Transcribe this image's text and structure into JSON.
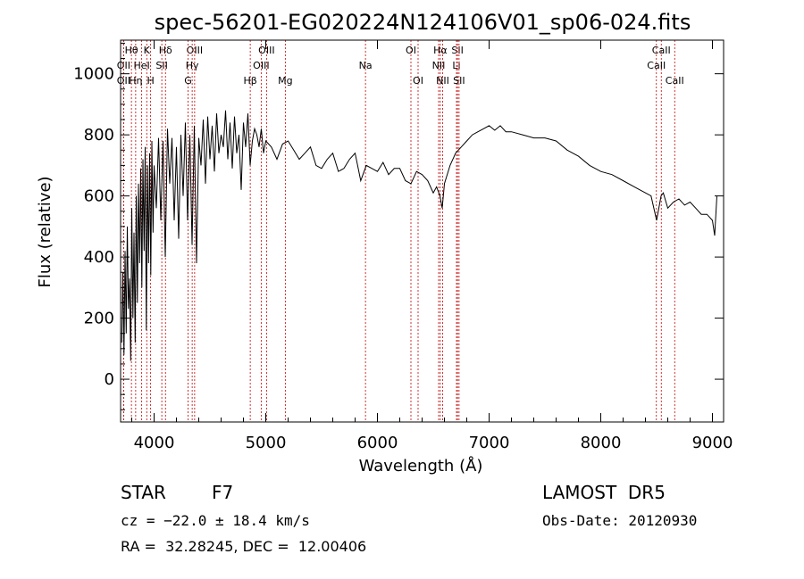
{
  "chart_data": {
    "type": "line",
    "title": "spec-56201-EG020224N124106V01_sp06-024.fits",
    "xlabel": "Wavelength (Å)",
    "ylabel": "Flux (relative)",
    "xlim": [
      3700,
      9100
    ],
    "ylim": [
      -140,
      1110
    ],
    "xticks": [
      4000,
      5000,
      6000,
      7000,
      8000,
      9000
    ],
    "yticks": [
      0,
      200,
      400,
      600,
      800,
      1000
    ],
    "grid": false,
    "series": [
      {
        "values_description_free": true,
        "x": [
          3710,
          3720,
          3730,
          3740,
          3750,
          3760,
          3770,
          3780,
          3790,
          3800,
          3810,
          3820,
          3830,
          3840,
          3850,
          3860,
          3870,
          3880,
          3890,
          3900,
          3910,
          3920,
          3930,
          3940,
          3950,
          3960,
          3970,
          3980,
          3990,
          4000,
          4020,
          4040,
          4060,
          4080,
          4100,
          4120,
          4140,
          4160,
          4180,
          4200,
          4220,
          4240,
          4260,
          4280,
          4300,
          4320,
          4340,
          4360,
          4380,
          4400,
          4420,
          4440,
          4460,
          4480,
          4500,
          4520,
          4540,
          4560,
          4580,
          4600,
          4620,
          4640,
          4660,
          4680,
          4700,
          4720,
          4740,
          4760,
          4780,
          4800,
          4820,
          4840,
          4860,
          4880,
          4900,
          4920,
          4940,
          4960,
          4980,
          5000,
          5050,
          5100,
          5150,
          5200,
          5250,
          5300,
          5350,
          5400,
          5450,
          5500,
          5550,
          5600,
          5650,
          5700,
          5750,
          5800,
          5850,
          5900,
          5950,
          6000,
          6050,
          6100,
          6150,
          6200,
          6250,
          6300,
          6350,
          6400,
          6450,
          6500,
          6530,
          6560,
          6580,
          6600,
          6650,
          6700,
          6750,
          6800,
          6850,
          6900,
          6950,
          7000,
          7050,
          7100,
          7150,
          7200,
          7300,
          7400,
          7500,
          7600,
          7700,
          7800,
          7900,
          8000,
          8100,
          8200,
          8300,
          8400,
          8450,
          8500,
          8540,
          8560,
          8600,
          8650,
          8700,
          8750,
          8800,
          8850,
          8900,
          8950,
          9000,
          9020,
          9040
        ],
        "y": [
          120,
          350,
          80,
          420,
          150,
          500,
          230,
          330,
          60,
          560,
          200,
          480,
          120,
          600,
          250,
          640,
          380,
          690,
          300,
          720,
          420,
          760,
          160,
          700,
          380,
          740,
          340,
          780,
          480,
          700,
          560,
          790,
          520,
          780,
          400,
          820,
          640,
          790,
          520,
          760,
          460,
          800,
          600,
          840,
          520,
          800,
          440,
          830,
          380,
          790,
          700,
          850,
          640,
          860,
          720,
          830,
          680,
          870,
          740,
          800,
          760,
          880,
          720,
          840,
          690,
          860,
          740,
          800,
          620,
          840,
          760,
          870,
          700,
          780,
          820,
          800,
          760,
          820,
          740,
          780,
          760,
          720,
          770,
          780,
          750,
          720,
          740,
          760,
          700,
          690,
          720,
          740,
          680,
          690,
          720,
          740,
          650,
          700,
          690,
          680,
          710,
          670,
          690,
          690,
          650,
          640,
          680,
          670,
          650,
          610,
          630,
          600,
          560,
          640,
          700,
          740,
          760,
          780,
          800,
          810,
          820,
          830,
          815,
          830,
          810,
          810,
          800,
          790,
          790,
          780,
          750,
          730,
          700,
          680,
          670,
          650,
          630,
          610,
          600,
          520,
          600,
          610,
          560,
          580,
          590,
          570,
          580,
          560,
          540,
          540,
          520,
          470,
          600
        ]
      }
    ],
    "lines": [
      {
        "label": "Hθ",
        "wavelength": 3797,
        "row": 1
      },
      {
        "label": "OII",
        "wavelength": 3727,
        "row": 2
      },
      {
        "label": "OII",
        "wavelength": 3727,
        "row": 3
      },
      {
        "label": "K",
        "wavelength": 3934,
        "row": 1
      },
      {
        "label": "HeI",
        "wavelength": 3889,
        "row": 2
      },
      {
        "label": "Hη",
        "wavelength": 3835,
        "row": 3
      },
      {
        "label": "Hδ",
        "wavelength": 4102,
        "row": 1
      },
      {
        "label": "SII",
        "wavelength": 4069,
        "row": 2
      },
      {
        "label": "H",
        "wavelength": 3969,
        "row": 3
      },
      {
        "label": "OIII",
        "wavelength": 4363,
        "row": 1
      },
      {
        "label": "Hγ",
        "wavelength": 4341,
        "row": 2
      },
      {
        "label": "G",
        "wavelength": 4304,
        "row": 3
      },
      {
        "label": "OIII",
        "wavelength": 5007,
        "row": 1
      },
      {
        "label": "OIII",
        "wavelength": 4959,
        "row": 2
      },
      {
        "label": "Hβ",
        "wavelength": 4861,
        "row": 3
      },
      {
        "label": "Mg",
        "wavelength": 5175,
        "row": 3
      },
      {
        "label": "Na",
        "wavelength": 5893,
        "row": 2
      },
      {
        "label": "OI",
        "wavelength": 6300,
        "row": 1
      },
      {
        "label": "OI",
        "wavelength": 6364,
        "row": 3
      },
      {
        "label": "Hα",
        "wavelength": 6563,
        "row": 1
      },
      {
        "label": "NII",
        "wavelength": 6548,
        "row": 2
      },
      {
        "label": "NII",
        "wavelength": 6584,
        "row": 3
      },
      {
        "label": "SII",
        "wavelength": 6717,
        "row": 1
      },
      {
        "label": "Li",
        "wavelength": 6708,
        "row": 2
      },
      {
        "label": "SII",
        "wavelength": 6731,
        "row": 3
      },
      {
        "label": "CaII",
        "wavelength": 8542,
        "row": 1
      },
      {
        "label": "CaII",
        "wavelength": 8498,
        "row": 2
      },
      {
        "label": "CaII",
        "wavelength": 8662,
        "row": 3
      }
    ]
  },
  "footer": {
    "object_type": "STAR",
    "spectral_class": "F7",
    "survey": "LAMOST  DR5",
    "redshift": "cz = −22.0 ± 18.4 km/s",
    "obs_date": "Obs-Date: 20120930",
    "coords": "RA =  32.28245, DEC =  12.00406"
  }
}
